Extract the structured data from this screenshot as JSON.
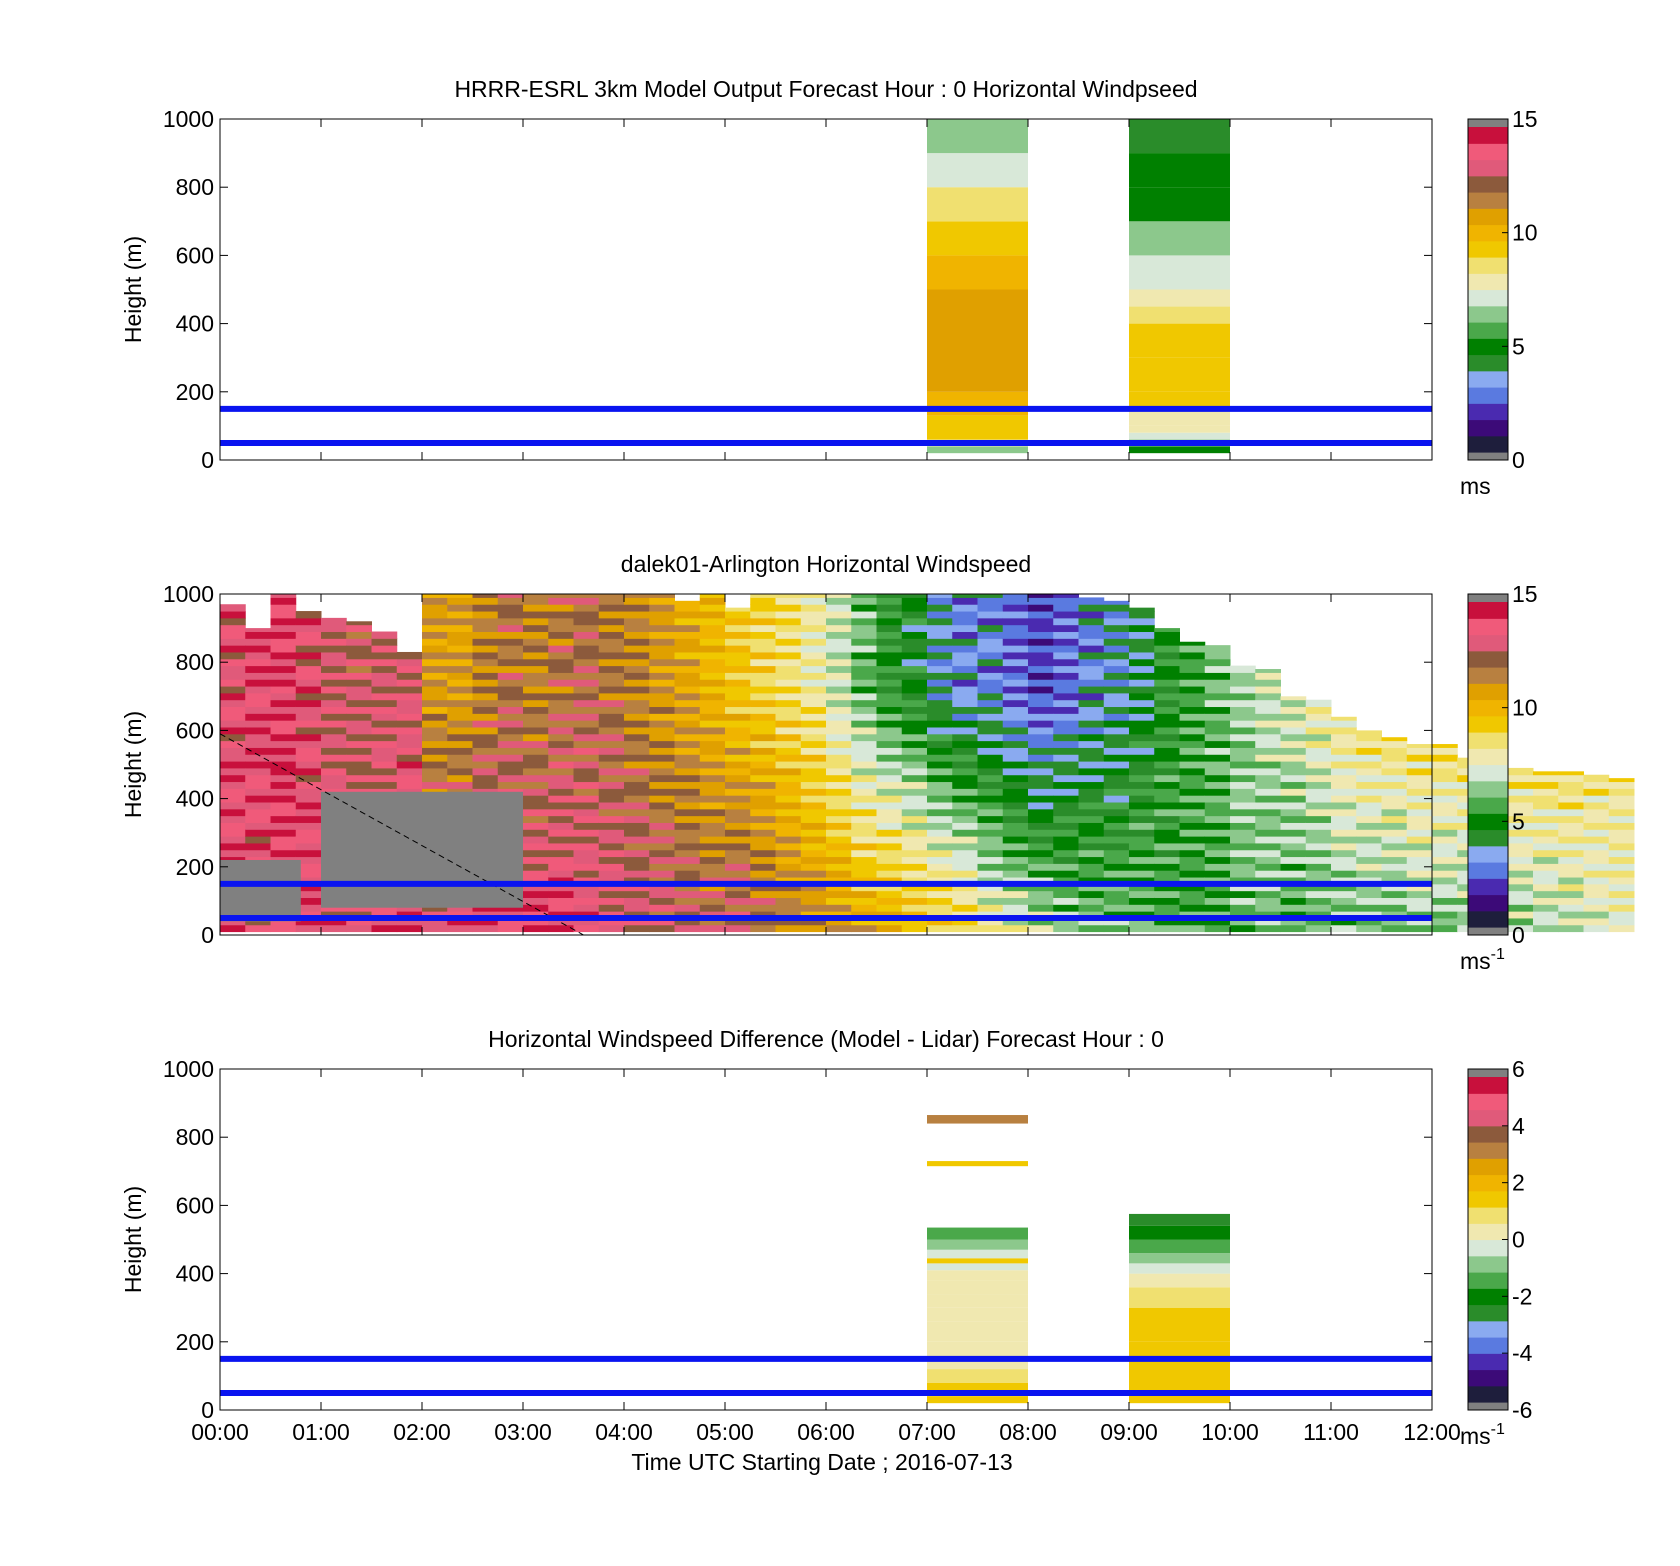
{
  "figure": {
    "time_axis_label": "Time UTC  Starting Date ; 2016-07-13"
  },
  "chart_data": [
    {
      "type": "heatmap",
      "panel": "model",
      "title": "HRRR-ESRL 3km Model Output   Forecast Hour : 0 Horizontal Windpseed",
      "xlabel": "",
      "ylabel": "Height (m)",
      "xlim_hours": [
        0,
        12
      ],
      "ylim": [
        0,
        1000
      ],
      "y_ticks": [
        0,
        200,
        400,
        600,
        800,
        1000
      ],
      "x_tick_labels": [],
      "colorbar": {
        "min": 0,
        "max": 15,
        "ticks": [
          0,
          5,
          10,
          15
        ],
        "unit": "ms",
        "unit_sup": ""
      },
      "reference_lines_m": [
        50,
        150
      ],
      "columns": [
        {
          "t0": 7,
          "t1": 8,
          "cells": [
            {
              "z0": 20,
              "z1": 40,
              "v": 6.5
            },
            {
              "z0": 40,
              "z1": 60,
              "v": 7.5
            },
            {
              "z0": 60,
              "z1": 130,
              "v": 9.5
            },
            {
              "z0": 130,
              "z1": 200,
              "v": 10.0
            },
            {
              "z0": 200,
              "z1": 500,
              "v": 10.5
            },
            {
              "z0": 500,
              "z1": 600,
              "v": 10.0
            },
            {
              "z0": 600,
              "z1": 700,
              "v": 9.0
            },
            {
              "z0": 700,
              "z1": 800,
              "v": 8.5
            },
            {
              "z0": 800,
              "z1": 900,
              "v": 7.0
            },
            {
              "z0": 900,
              "z1": 1000,
              "v": 6.0
            }
          ]
        },
        {
          "t0": 9,
          "t1": 10,
          "cells": [
            {
              "z0": 20,
              "z1": 40,
              "v": 4.5
            },
            {
              "z0": 40,
              "z1": 60,
              "v": 6.0
            },
            {
              "z0": 60,
              "z1": 80,
              "v": 7.3
            },
            {
              "z0": 80,
              "z1": 100,
              "v": 7.7
            },
            {
              "z0": 100,
              "z1": 150,
              "v": 8.2
            },
            {
              "z0": 150,
              "z1": 200,
              "v": 9.0
            },
            {
              "z0": 200,
              "z1": 300,
              "v": 9.2
            },
            {
              "z0": 300,
              "z1": 400,
              "v": 9.0
            },
            {
              "z0": 400,
              "z1": 450,
              "v": 8.5
            },
            {
              "z0": 450,
              "z1": 500,
              "v": 8.0
            },
            {
              "z0": 500,
              "z1": 600,
              "v": 7.0
            },
            {
              "z0": 600,
              "z1": 700,
              "v": 6.0
            },
            {
              "z0": 700,
              "z1": 800,
              "v": 5.0
            },
            {
              "z0": 800,
              "z1": 900,
              "v": 4.5
            },
            {
              "z0": 900,
              "z1": 1000,
              "v": 4.0
            }
          ]
        }
      ]
    },
    {
      "type": "heatmap",
      "panel": "lidar",
      "title": "dalek01-Arlington  Horizontal Windspeed",
      "xlabel": "",
      "ylabel": "Height (m)",
      "xlim_hours": [
        0,
        12
      ],
      "ylim": [
        0,
        1000
      ],
      "y_ticks": [
        0,
        200,
        400,
        600,
        800,
        1000
      ],
      "x_tick_labels": [],
      "colorbar": {
        "min": 0,
        "max": 15,
        "ticks": [
          0,
          5,
          10,
          15
        ],
        "unit": "ms",
        "unit_sup": "-1"
      },
      "reference_lines_m": [
        50,
        150
      ],
      "dashed_line": {
        "from": [
          0,
          590
        ],
        "to": [
          3.6,
          0
        ]
      },
      "profile_interval_hours": 0.25,
      "top_of_data_m": [
        970,
        900,
        1000,
        950,
        930,
        920,
        890,
        830,
        1000,
        1000,
        1000,
        1000,
        1000,
        1000,
        1000,
        1000,
        1000,
        1000,
        980,
        1000,
        960,
        1000,
        1000,
        1000,
        1000,
        1000,
        1000,
        1000,
        1000,
        1000,
        1000,
        1000,
        1000,
        1000,
        990,
        980,
        960,
        900,
        860,
        850,
        790,
        780,
        700,
        690,
        640,
        600,
        580,
        560,
        560,
        520,
        500,
        490,
        480,
        480,
        470,
        460
      ],
      "upper_speed_ms": [
        13.5,
        13.8,
        14.0,
        13.5,
        13.0,
        12.8,
        13.0,
        13.2,
        11.0,
        10.8,
        11.5,
        12.0,
        11.5,
        12.0,
        12.2,
        11.8,
        11.5,
        11.0,
        10.5,
        10.0,
        9.5,
        9.0,
        8.5,
        8.0,
        7.0,
        6.0,
        5.0,
        4.5,
        3.5,
        3.0,
        3.0,
        2.5,
        2.0,
        2.5,
        3.0,
        3.5,
        4.0,
        5.0,
        5.5,
        6.0,
        6.5,
        7.0,
        7.5,
        8.0,
        8.5,
        9.0,
        9.2,
        9.4,
        9.5,
        9.3,
        9.6,
        9.5,
        9.4,
        9.3,
        9.2,
        9.0
      ],
      "lower_speed_ms": [
        14.0,
        13.5,
        14.2,
        13.8,
        13.5,
        13.2,
        13.8,
        14.0,
        13.5,
        14.0,
        14.2,
        13.8,
        14.0,
        14.0,
        13.8,
        13.5,
        13.2,
        13.0,
        12.8,
        12.5,
        13.0,
        12.5,
        12.0,
        11.5,
        11.0,
        10.5,
        10.5,
        10.0,
        9.5,
        9.0,
        8.0,
        7.5,
        7.0,
        6.5,
        6.5,
        6.0,
        6.0,
        5.5,
        5.5,
        5.5,
        6.0,
        6.0,
        5.5,
        5.8,
        6.0,
        6.2,
        6.0,
        6.2,
        6.0,
        6.5,
        6.2,
        6.5,
        6.8,
        7.0,
        7.2,
        7.5
      ],
      "missing_data_regions": [
        {
          "t0": 1.0,
          "t1": 3.0,
          "z0": 80,
          "z1": 420
        },
        {
          "t0": 0.0,
          "t1": 0.8,
          "z0": 40,
          "z1": 220
        }
      ]
    },
    {
      "type": "heatmap",
      "panel": "difference",
      "title": "Horizontal Windspeed Difference (Model - Lidar) Forecast Hour : 0",
      "xlabel": "Time UTC  Starting Date ; 2016-07-13",
      "ylabel": "Height (m)",
      "xlim_hours": [
        0,
        12
      ],
      "ylim": [
        0,
        1000
      ],
      "y_ticks": [
        0,
        200,
        400,
        600,
        800,
        1000
      ],
      "x_tick_labels": [
        "00:00",
        "01:00",
        "02:00",
        "03:00",
        "04:00",
        "05:00",
        "06:00",
        "07:00",
        "08:00",
        "09:00",
        "10:00",
        "11:00",
        "12:00"
      ],
      "colorbar": {
        "min": -6,
        "max": 6,
        "ticks": [
          -6,
          -4,
          -2,
          0,
          2,
          4,
          6
        ],
        "unit": "ms",
        "unit_sup": "-1"
      },
      "reference_lines_m": [
        50,
        150
      ],
      "columns": [
        {
          "t0": 7,
          "t1": 8,
          "cells": [
            {
              "z0": 20,
              "z1": 40,
              "v": 1.2
            },
            {
              "z0": 40,
              "z1": 80,
              "v": 1.5
            },
            {
              "z0": 80,
              "z1": 120,
              "v": 1.0
            },
            {
              "z0": 120,
              "z1": 200,
              "v": 0.6
            },
            {
              "z0": 200,
              "z1": 260,
              "v": 0.3
            },
            {
              "z0": 260,
              "z1": 300,
              "v": 0.6
            },
            {
              "z0": 300,
              "z1": 340,
              "v": 0.2
            },
            {
              "z0": 340,
              "z1": 380,
              "v": 0.5
            },
            {
              "z0": 380,
              "z1": 410,
              "v": 0.1
            },
            {
              "z0": 410,
              "z1": 430,
              "v": -0.5
            },
            {
              "z0": 430,
              "z1": 445,
              "v": 1.2
            },
            {
              "z0": 445,
              "z1": 470,
              "v": -0.6
            },
            {
              "z0": 470,
              "z1": 500,
              "v": -1.0
            },
            {
              "z0": 500,
              "z1": 535,
              "v": -1.6
            },
            {
              "z0": 715,
              "z1": 730,
              "v": 1.6
            },
            {
              "z0": 840,
              "z1": 865,
              "v": 3.2
            }
          ]
        },
        {
          "t0": 9,
          "t1": 10,
          "cells": [
            {
              "z0": 20,
              "z1": 200,
              "v": 1.6
            },
            {
              "z0": 200,
              "z1": 300,
              "v": 1.3
            },
            {
              "z0": 300,
              "z1": 360,
              "v": 1.0
            },
            {
              "z0": 360,
              "z1": 390,
              "v": 0.6
            },
            {
              "z0": 390,
              "z1": 400,
              "v": 0.0
            },
            {
              "z0": 400,
              "z1": 430,
              "v": -0.4
            },
            {
              "z0": 430,
              "z1": 460,
              "v": -0.9
            },
            {
              "z0": 460,
              "z1": 500,
              "v": -1.5
            },
            {
              "z0": 500,
              "z1": 540,
              "v": -2.2
            },
            {
              "z0": 540,
              "z1": 575,
              "v": -2.8
            }
          ]
        }
      ]
    }
  ],
  "colors": {
    "reference_line": "#0a14f0",
    "missing_data": "#808080",
    "colormap": [
      "#1e1e3c",
      "#3c0a78",
      "#4a2ab0",
      "#5a7ae0",
      "#8aaaf0",
      "#2a8c2a",
      "#008000",
      "#4aa84a",
      "#8cc88c",
      "#d8e8d8",
      "#f0e8b0",
      "#f0e070",
      "#f0c800",
      "#f0b400",
      "#e0a000",
      "#b88040",
      "#8c5a3c",
      "#e05a7a",
      "#f05a7a",
      "#c8103c"
    ]
  }
}
